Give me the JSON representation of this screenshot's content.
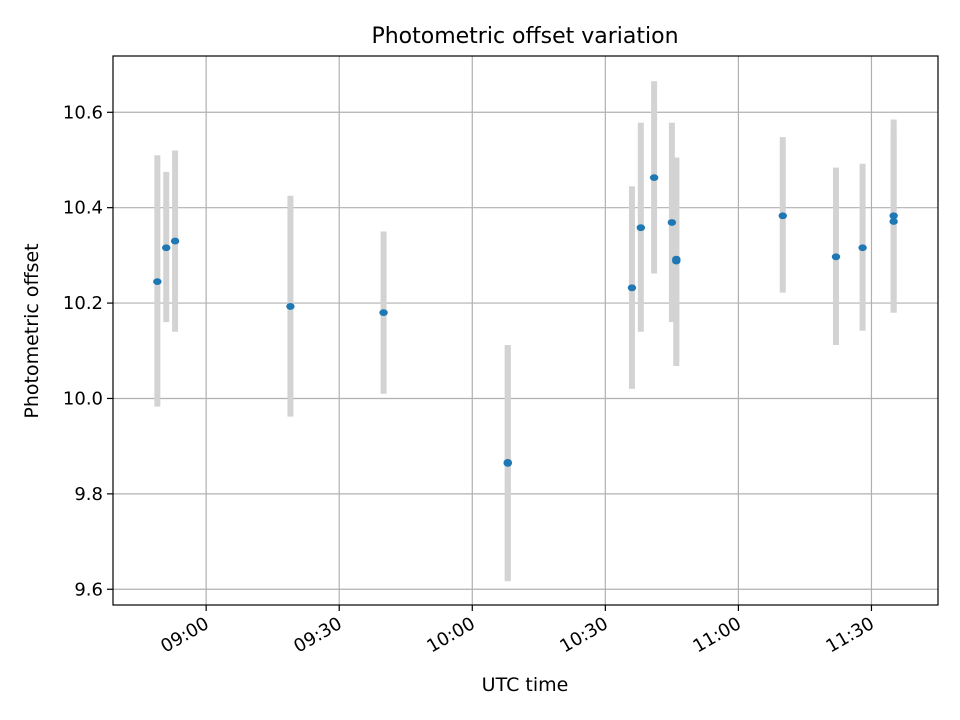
{
  "chart_data": {
    "type": "scatter",
    "title": "Photometric offset variation",
    "xlabel": "UTC time",
    "ylabel": "Photometric offset",
    "x_tick_labels": [
      "09:00",
      "09:30",
      "10:00",
      "10:30",
      "11:00",
      "11:30"
    ],
    "y_tick_labels": [
      "9.6",
      "9.8",
      "10.0",
      "10.2",
      "10.4",
      "10.6"
    ],
    "y_ticks": [
      9.6,
      9.8,
      10.0,
      10.2,
      10.4,
      10.6
    ],
    "xlim": [
      "08:39",
      "11:45"
    ],
    "ylim": [
      9.567,
      10.718
    ],
    "grid": true,
    "colors": {
      "point": "#1f77b4",
      "errorbar": "#d3d3d3"
    },
    "series": [
      {
        "points": [
          {
            "x": "08:49",
            "y": 10.245,
            "yerr_low": 9.983,
            "yerr_high": 10.51
          },
          {
            "x": "08:51",
            "y": 10.316,
            "yerr_low": 10.16,
            "yerr_high": 10.475
          },
          {
            "x": "08:53",
            "y": 10.33,
            "yerr_low": 10.14,
            "yerr_high": 10.52
          },
          {
            "x": "09:19",
            "y": 10.193,
            "yerr_low": 9.962,
            "yerr_high": 10.425
          },
          {
            "x": "09:40",
            "y": 10.18,
            "yerr_low": 10.01,
            "yerr_high": 10.35
          },
          {
            "x": "10:08",
            "y": 9.864,
            "yerr_low": 9.617,
            "yerr_high": 10.11
          },
          {
            "x": "10:08",
            "y": 9.866,
            "yerr_low": 9.617,
            "yerr_high": 10.112
          },
          {
            "x": "10:36",
            "y": 10.232,
            "yerr_low": 10.02,
            "yerr_high": 10.445
          },
          {
            "x": "10:38",
            "y": 10.358,
            "yerr_low": 10.14,
            "yerr_high": 10.578
          },
          {
            "x": "10:41",
            "y": 10.463,
            "yerr_low": 10.262,
            "yerr_high": 10.665
          },
          {
            "x": "10:45",
            "y": 10.369,
            "yerr_low": 10.16,
            "yerr_high": 10.578
          },
          {
            "x": "10:46",
            "y": 10.288,
            "yerr_low": 10.068,
            "yerr_high": 10.505
          },
          {
            "x": "10:46",
            "y": 10.292,
            "yerr_low": 10.078,
            "yerr_high": 10.505
          },
          {
            "x": "11:10",
            "y": 10.383,
            "yerr_low": 10.222,
            "yerr_high": 10.548
          },
          {
            "x": "11:22",
            "y": 10.297,
            "yerr_low": 10.112,
            "yerr_high": 10.484
          },
          {
            "x": "11:28",
            "y": 10.316,
            "yerr_low": 10.142,
            "yerr_high": 10.492
          },
          {
            "x": "11:35",
            "y": 10.383,
            "yerr_low": 10.18,
            "yerr_high": 10.585
          },
          {
            "x": "11:35",
            "y": 10.371,
            "yerr_low": 10.18,
            "yerr_high": 10.562
          }
        ]
      }
    ]
  }
}
